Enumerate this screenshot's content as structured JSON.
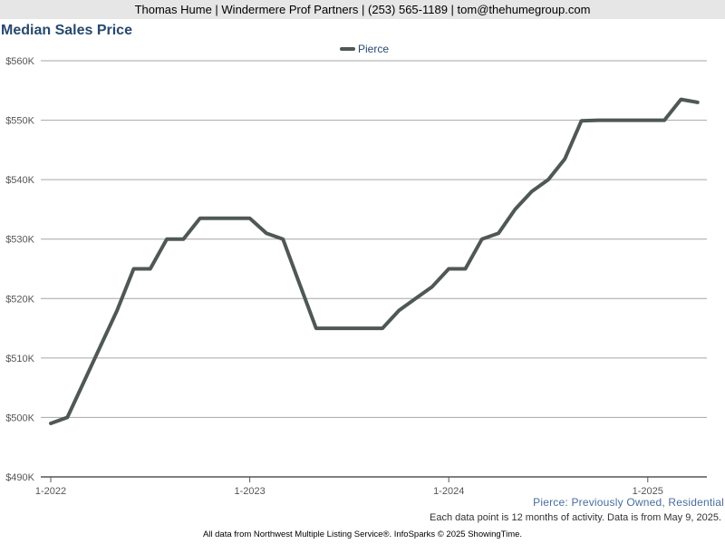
{
  "header": {
    "contact": "Thomas Hume | Windermere Prof Partners | (253) 565-1189 | tom@thehumegroup.com"
  },
  "chart_data": {
    "type": "line",
    "title": "Median Sales Price",
    "xlabel": "",
    "ylabel": "",
    "x_ticks": [
      "1-2022",
      "1-2023",
      "1-2024",
      "1-2025"
    ],
    "y_ticks": [
      "$490K",
      "$500K",
      "$510K",
      "$520K",
      "$530K",
      "$540K",
      "$550K",
      "$560K"
    ],
    "ylim": [
      490000,
      560000
    ],
    "grid": true,
    "legend": "top-center",
    "series": [
      {
        "name": "Pierce",
        "color": "#4f5857",
        "x": [
          "1-2022",
          "2-2022",
          "3-2022",
          "4-2022",
          "5-2022",
          "6-2022",
          "7-2022",
          "8-2022",
          "9-2022",
          "10-2022",
          "11-2022",
          "12-2022",
          "1-2023",
          "2-2023",
          "3-2023",
          "4-2023",
          "5-2023",
          "6-2023",
          "7-2023",
          "8-2023",
          "9-2023",
          "10-2023",
          "11-2023",
          "12-2023",
          "1-2024",
          "2-2024",
          "3-2024",
          "4-2024",
          "5-2024",
          "6-2024",
          "7-2024",
          "8-2024",
          "9-2024",
          "10-2024",
          "11-2024",
          "12-2024",
          "1-2025",
          "2-2025",
          "3-2025",
          "4-2025"
        ],
        "values": [
          499000,
          500000,
          506000,
          512000,
          518000,
          525000,
          525000,
          530000,
          530000,
          533500,
          533500,
          533500,
          533500,
          531000,
          530000,
          522500,
          515000,
          515000,
          515000,
          515000,
          515000,
          518000,
          520000,
          522000,
          525000,
          525000,
          530000,
          531000,
          535000,
          538000,
          540000,
          543500,
          549900,
          550000,
          550000,
          550000,
          550000,
          550000,
          553500,
          553000
        ]
      }
    ]
  },
  "footer": {
    "series_desc": "Pierce: Previously Owned, Residential",
    "note": "Each data point is 12 months of activity. Data is from May 9, 2025.",
    "source": "All data from Northwest Multiple Listing Service®. InfoSparks © 2025 ShowingTime."
  }
}
